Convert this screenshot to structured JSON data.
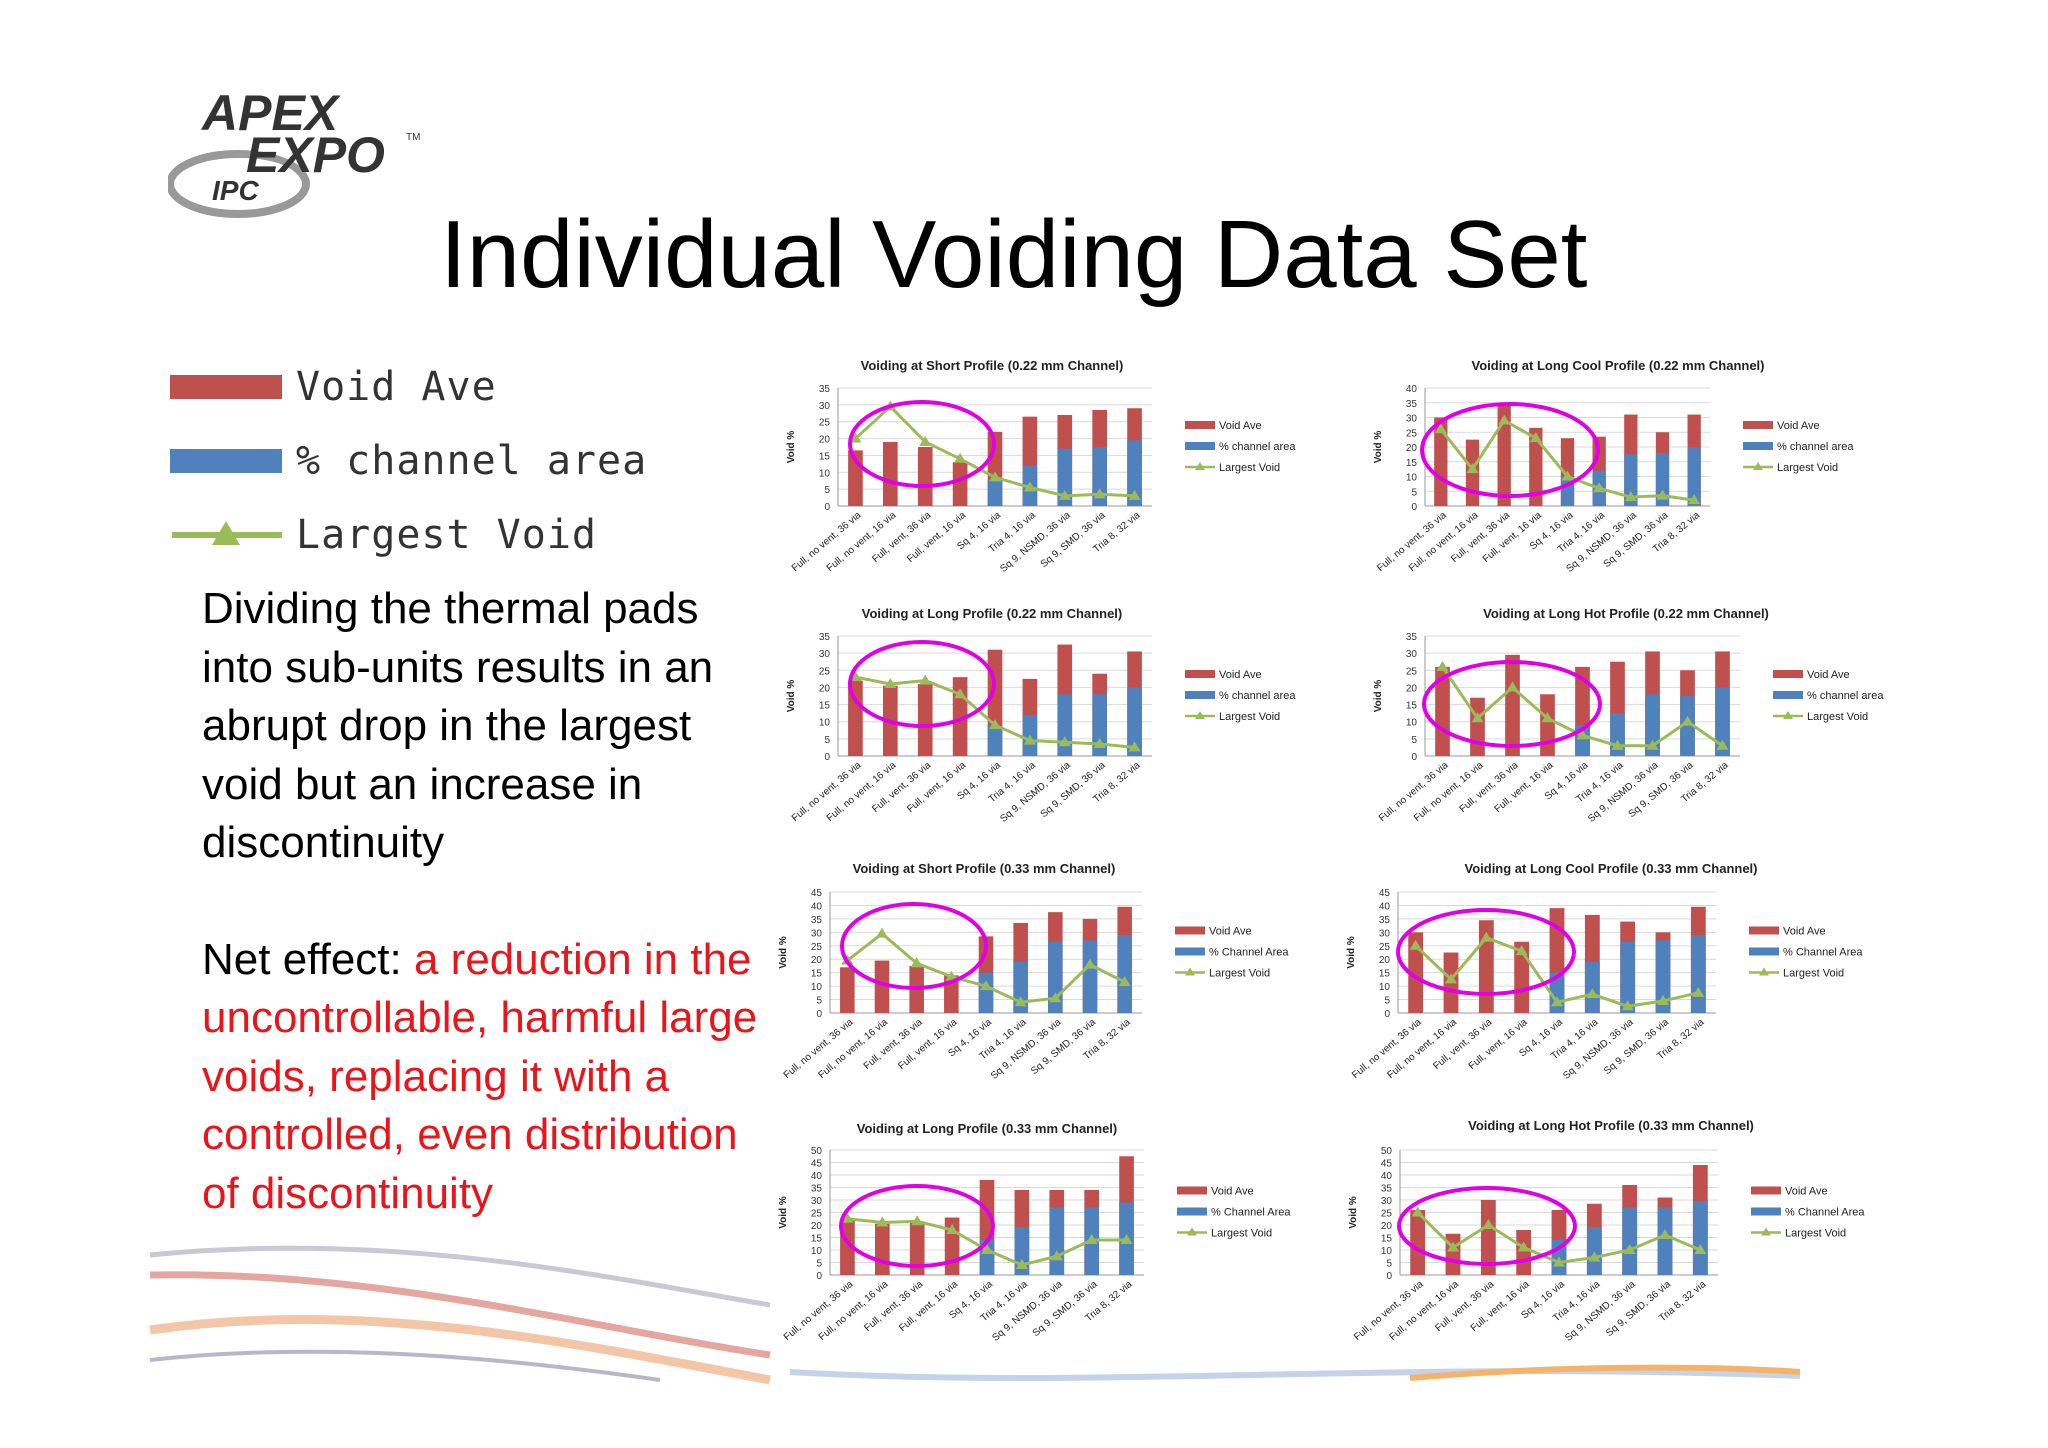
{
  "slide": {
    "title": "Individual Voiding Data Set",
    "logo": {
      "line1": "APEX",
      "line2": "EXPO",
      "line3": "IPC",
      "tm": "TM"
    },
    "legend": [
      {
        "label": "Void Ave",
        "color": "#c0504d"
      },
      {
        "label": "% channel area",
        "color": "#4f81bd"
      },
      {
        "label": "Largest Void",
        "color": "#9bbb59"
      }
    ],
    "para1": "Dividing the thermal pads into sub-units results in an abrupt drop in the largest void but an increase in discontinuity",
    "para2_prefix": "Net effect: ",
    "para2_red": "a reduction in the uncontrollable, harmful large voids, replacing it with a controlled, even distribution of discontinuity",
    "colors": {
      "void_ave": "#c0504d",
      "channel": "#4f81bd",
      "largest": "#9bbb59",
      "circle": "#e100e6",
      "accent_red": "#e8151b"
    }
  },
  "chart_data": [
    {
      "type": "bar",
      "title": "Voiding at Short Profile (0.22 mm Channel)",
      "ylabel": "Void %",
      "ylim": [
        0,
        35
      ],
      "yticks": [
        "0",
        "5",
        "10",
        "15",
        "20",
        "25",
        "30",
        "35"
      ],
      "categories": [
        "Full, no vent, 36 via",
        "Full, no vent, 16 via",
        "Full, vent, 36 via",
        "Full, vent, 16 via",
        "Sq 4, 16 via",
        "Tria 4, 16 via",
        "Sq 9, NSMD, 36 via",
        "Sq 9, SMD, 36 via",
        "Tria 8, 32 via"
      ],
      "series": [
        {
          "name": "Void Ave",
          "values": [
            16.5,
            19,
            17.5,
            13,
            22,
            26.5,
            27,
            28.5,
            29
          ]
        },
        {
          "name": "% channel area",
          "values": [
            0,
            0,
            0,
            0,
            8,
            12,
            17,
            17.5,
            19.5
          ]
        },
        {
          "name": "Largest Void",
          "values": [
            20,
            29.5,
            19,
            14,
            8.5,
            5.5,
            3,
            3.5,
            3
          ]
        }
      ]
    },
    {
      "type": "bar",
      "title": "Voiding at Long Cool Profile (0.22 mm Channel)",
      "ylabel": "Void %",
      "ylim": [
        0,
        40
      ],
      "yticks": [
        "0",
        "5",
        "10",
        "15",
        "20",
        "25",
        "30",
        "35",
        "40"
      ],
      "categories": [
        "Full, no vent, 36 via",
        "Full, no vent, 16 via",
        "Full, vent, 36 via",
        "Full, vent, 16 via",
        "Sq 4, 16 via",
        "Tria 4, 16 via",
        "Sq 9, NSMD, 36 via",
        "Sq 9, SMD, 36 via",
        "Tria 8, 32 via"
      ],
      "series": [
        {
          "name": "Void Ave",
          "values": [
            30,
            22.5,
            34.5,
            26.5,
            23,
            23.5,
            31,
            25,
            31
          ]
        },
        {
          "name": "% channel area",
          "values": [
            0,
            0,
            0,
            0,
            10,
            12,
            17.5,
            18,
            20
          ]
        },
        {
          "name": "Largest Void",
          "values": [
            26,
            12.5,
            29,
            23,
            10,
            6,
            3,
            3.5,
            2
          ]
        }
      ]
    },
    {
      "type": "bar",
      "title": "Voiding at Long Profile (0.22 mm Channel)",
      "ylabel": "Void %",
      "ylim": [
        0,
        35
      ],
      "yticks": [
        "0",
        "5",
        "10",
        "15",
        "20",
        "25",
        "30",
        "35"
      ],
      "categories": [
        "Full, no vent, 36 via",
        "Full, no vent, 16 via",
        "Full, vent, 36 via",
        "Full, vent, 16 via",
        "Sq 4, 16 via",
        "Tria 4, 16 via",
        "Sq 9, NSMD, 36 via",
        "Sq 9, SMD, 36 via",
        "Tria 8, 32 via"
      ],
      "series": [
        {
          "name": "Void Ave",
          "values": [
            22,
            20.5,
            21,
            23,
            31,
            22.5,
            32.5,
            24,
            30.5
          ]
        },
        {
          "name": "% channel area",
          "values": [
            0,
            0,
            0,
            0,
            9,
            12,
            18,
            18,
            20
          ]
        },
        {
          "name": "Largest Void",
          "values": [
            23,
            21,
            22,
            18,
            9,
            4.5,
            4,
            3.5,
            2.5
          ]
        }
      ]
    },
    {
      "type": "bar",
      "title": "Voiding at Long Hot Profile (0.22 mm Channel)",
      "ylabel": "Void %",
      "ylim": [
        0,
        35
      ],
      "yticks": [
        "0",
        "5",
        "10",
        "15",
        "20",
        "25",
        "30",
        "35"
      ],
      "categories": [
        "Full, no vent, 36 via",
        "Full, no vent, 16 via",
        "Full, vent, 36 via",
        "Full, vent, 16 via",
        "Sq 4, 16 via",
        "Tria 4, 16 via",
        "Sq 9, NSMD, 36 via",
        "Sq 9, SMD, 36 via",
        "Tria 8, 32 via"
      ],
      "series": [
        {
          "name": "Void Ave",
          "values": [
            26,
            17,
            29.5,
            18,
            26,
            27.5,
            30.5,
            25,
            30.5
          ]
        },
        {
          "name": "% channel area",
          "values": [
            0,
            0,
            0,
            0,
            9,
            12.5,
            18,
            17.5,
            20
          ]
        },
        {
          "name": "Largest Void",
          "values": [
            26,
            11,
            20,
            11,
            6,
            3,
            3,
            10,
            3
          ]
        }
      ]
    },
    {
      "type": "bar",
      "title": "Voiding at Short Profile (0.33 mm Channel)",
      "ylabel": "Void %",
      "ylim": [
        0,
        45
      ],
      "yticks": [
        "0",
        "5",
        "10",
        "15",
        "20",
        "25",
        "30",
        "35",
        "40",
        "45"
      ],
      "categories": [
        "Full, no vent, 36 via",
        "Full, no vent, 16 via",
        "Full, vent, 36 via",
        "Full, vent, 16 via",
        "Sq 4, 16 via",
        "Tria 4, 16 via",
        "Sq 9, NSMD, 36 via",
        "Sq 9, SMD, 36 via",
        "Tria 8, 32 via"
      ],
      "series": [
        {
          "name": "Void Ave",
          "values": [
            17,
            19.5,
            17.5,
            14,
            28.5,
            33.5,
            37.5,
            35,
            39.5
          ]
        },
        {
          "name": "% Channel Area",
          "values": [
            0,
            0,
            0,
            0,
            15,
            19,
            26.5,
            27,
            29
          ]
        },
        {
          "name": "Largest Void",
          "values": [
            19.5,
            29.5,
            18.5,
            13.5,
            10,
            4,
            5.5,
            18,
            11.5
          ]
        }
      ]
    },
    {
      "type": "bar",
      "title": "Voiding at Long Cool Profile (0.33 mm Channel)",
      "ylabel": "Void %",
      "ylim": [
        0,
        45
      ],
      "yticks": [
        "0",
        "5",
        "10",
        "15",
        "20",
        "25",
        "30",
        "35",
        "40",
        "45"
      ],
      "categories": [
        "Full, no vent, 36 via",
        "Full, no vent, 16 via",
        "Full, vent, 36 via",
        "Full, vent, 16 via",
        "Sq 4, 16 via",
        "Tria 4, 16 via",
        "Sq 9, NSMD, 36 via",
        "Sq 9, SMD, 36 via",
        "Tria 8, 32 via"
      ],
      "series": [
        {
          "name": "Void Ave",
          "values": [
            30,
            22.5,
            34.5,
            26.5,
            39,
            36.5,
            34,
            30,
            39.5
          ]
        },
        {
          "name": "% Channel Area",
          "values": [
            0,
            0,
            0,
            0,
            15,
            19,
            26.5,
            27,
            29
          ]
        },
        {
          "name": "Largest Void",
          "values": [
            25,
            12.5,
            28,
            23,
            4,
            7,
            2.5,
            4.5,
            7.5
          ]
        }
      ]
    },
    {
      "type": "bar",
      "title": "Voiding at Long Profile (0.33 mm Channel)",
      "ylabel": "Void %",
      "ylim": [
        0,
        50
      ],
      "yticks": [
        "0",
        "5",
        "10",
        "15",
        "20",
        "25",
        "30",
        "35",
        "40",
        "45",
        "50"
      ],
      "categories": [
        "Full, no vent, 36 via",
        "Full, no vent, 16 via",
        "Full, vent, 36 via",
        "Full, vent, 16 via",
        "Sq 4, 16 via",
        "Tria 4, 16 via",
        "Sq 9, NSMD, 36 via",
        "Sq 9, SMD, 36 via",
        "Tria 8, 32 via"
      ],
      "series": [
        {
          "name": "Void Ave",
          "values": [
            22,
            20.5,
            21,
            23,
            38,
            34,
            34,
            34,
            47.5
          ]
        },
        {
          "name": "% Channel Area",
          "values": [
            0,
            0,
            0,
            0,
            14,
            19,
            27,
            27,
            29
          ]
        },
        {
          "name": "Largest Void",
          "values": [
            22.5,
            21,
            21.5,
            18,
            10,
            4,
            7.5,
            14,
            14
          ]
        }
      ]
    },
    {
      "type": "bar",
      "title": "Voiding at Long Hot Profile (0.33 mm Channel)",
      "ylabel": "Void %",
      "ylim": [
        0,
        50
      ],
      "yticks": [
        "0",
        "5",
        "10",
        "15",
        "20",
        "25",
        "30",
        "35",
        "40",
        "45",
        "50"
      ],
      "categories": [
        "Full, no vent, 36 via",
        "Full, no vent, 16 via",
        "Full, vent, 36 via",
        "Full, vent, 16 via",
        "Sq 4, 16 via",
        "Tria 4, 16 via",
        "Sq 9, NSMD, 36 via",
        "Sq 9, SMD, 36 via",
        "Tria 8, 32 via"
      ],
      "series": [
        {
          "name": "Void Ave",
          "values": [
            26,
            16.5,
            30,
            18,
            26,
            28.5,
            36,
            31,
            44
          ]
        },
        {
          "name": "% Channel Area",
          "values": [
            0,
            0,
            0,
            0,
            14,
            19,
            27,
            27,
            29.5
          ]
        },
        {
          "name": "Largest Void",
          "values": [
            25,
            11,
            20,
            11,
            5,
            7,
            10,
            16,
            10
          ]
        }
      ]
    }
  ]
}
